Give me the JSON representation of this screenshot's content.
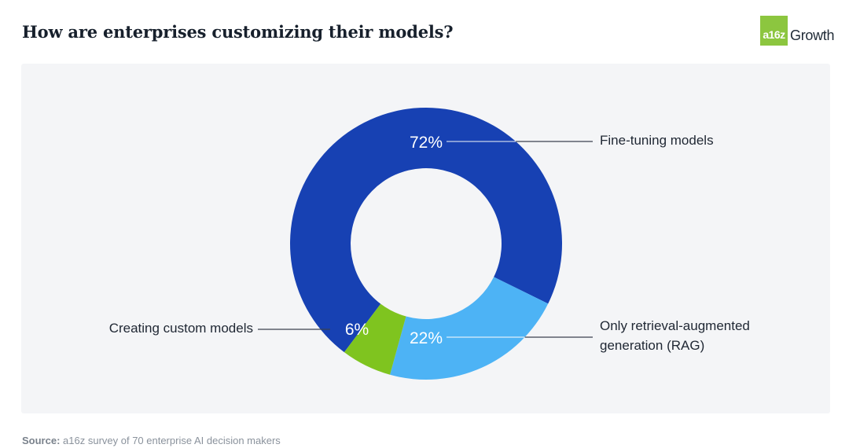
{
  "header": {
    "title": "How are enterprises customizing their models?",
    "logo_mark": "a16z",
    "logo_text": "Growth"
  },
  "chart_data": {
    "type": "pie",
    "donut": true,
    "title": "How are enterprises customizing their models?",
    "slices": [
      {
        "label_lines": [
          "Fine-tuning models"
        ],
        "value": 72,
        "display": "72%",
        "color": "#1741b3"
      },
      {
        "label_lines": [
          "Only retrieval-augmented",
          "generation (RAG)"
        ],
        "value": 22,
        "display": "22%",
        "color": "#4db3f5"
      },
      {
        "label_lines": [
          "Creating custom models"
        ],
        "value": 6,
        "display": "6%",
        "color": "#7fc41f"
      }
    ]
  },
  "footer": {
    "source_label": "Source:",
    "source_text": "a16z survey of 70 enterprise AI decision makers"
  },
  "colors": {
    "background_card": "#f4f5f7",
    "leader_line": "#3a4250"
  }
}
